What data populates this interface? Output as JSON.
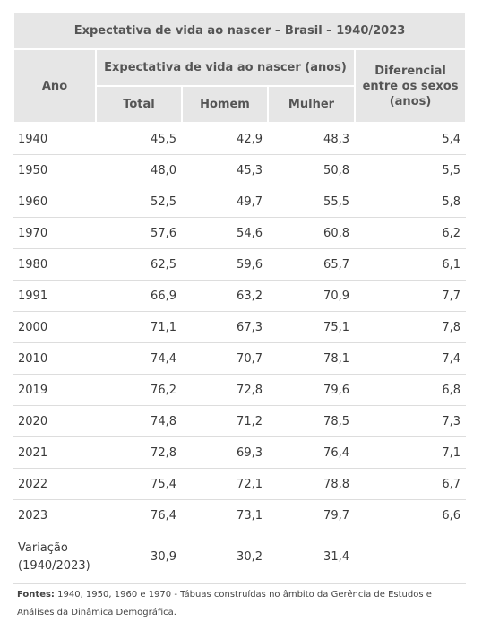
{
  "table": {
    "title": "Expectativa de vida ao nascer – Brasil – 1940/2023",
    "col_ano": "Ano",
    "group_header": "Expectativa de vida ao nascer (anos)",
    "col_total": "Total",
    "col_homem": "Homem",
    "col_mulher": "Mulher",
    "col_diferencial": "Diferencial entre os sexos (anos)",
    "rows": [
      {
        "ano": "1940",
        "total": "45,5",
        "homem": "42,9",
        "mulher": "48,3",
        "dif": "5,4"
      },
      {
        "ano": "1950",
        "total": "48,0",
        "homem": "45,3",
        "mulher": "50,8",
        "dif": "5,5"
      },
      {
        "ano": "1960",
        "total": "52,5",
        "homem": "49,7",
        "mulher": "55,5",
        "dif": "5,8"
      },
      {
        "ano": "1970",
        "total": "57,6",
        "homem": "54,6",
        "mulher": "60,8",
        "dif": "6,2"
      },
      {
        "ano": "1980",
        "total": "62,5",
        "homem": "59,6",
        "mulher": "65,7",
        "dif": "6,1"
      },
      {
        "ano": "1991",
        "total": "66,9",
        "homem": "63,2",
        "mulher": "70,9",
        "dif": "7,7"
      },
      {
        "ano": "2000",
        "total": "71,1",
        "homem": "67,3",
        "mulher": "75,1",
        "dif": "7,8"
      },
      {
        "ano": "2010",
        "total": "74,4",
        "homem": "70,7",
        "mulher": "78,1",
        "dif": "7,4"
      },
      {
        "ano": "2019",
        "total": "76,2",
        "homem": "72,8",
        "mulher": "79,6",
        "dif": "6,8"
      },
      {
        "ano": "2020",
        "total": "74,8",
        "homem": "71,2",
        "mulher": "78,5",
        "dif": "7,3"
      },
      {
        "ano": "2021",
        "total": "72,8",
        "homem": "69,3",
        "mulher": "76,4",
        "dif": "7,1"
      },
      {
        "ano": "2022",
        "total": "75,4",
        "homem": "72,1",
        "mulher": "78,8",
        "dif": "6,7"
      },
      {
        "ano": "2023",
        "total": "76,4",
        "homem": "73,1",
        "mulher": "79,7",
        "dif": "6,6"
      }
    ],
    "variation": {
      "label": "Variação (1940/2023)",
      "total": "30,9",
      "homem": "30,2",
      "mulher": "31,4",
      "dif": ""
    }
  },
  "footer": {
    "label": "Fontes:",
    "text": " 1940, 1950, 1960 e 1970 - Tábuas construídas no âmbito da Gerência de Estudos e Análises da Dinâmica Demográfica."
  }
}
